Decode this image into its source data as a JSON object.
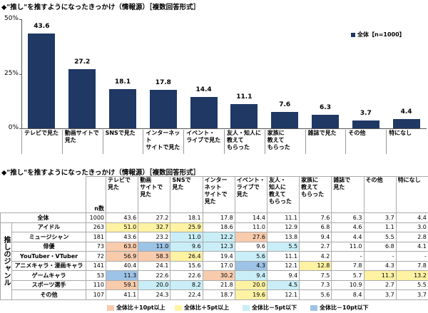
{
  "chart_data": {
    "type": "bar",
    "title": "◆\"推し\"を推すようになったきっかけ（情報源）［複数回答形式］",
    "categories": [
      "テレビで見た",
      "動画サイトで\n見た",
      "SNSで見た",
      "インターネット\nサイトで見た",
      "イベント・\nライブで見た",
      "友人・知人に\n教えて\nもらった",
      "家族に\n教えて\nもらった",
      "雑誌で見た",
      "その他",
      "特になし"
    ],
    "series": [
      {
        "name": "全体【n=1000】",
        "color": "#1f3864",
        "values": [
          43.6,
          27.2,
          18.1,
          17.8,
          14.4,
          11.1,
          7.6,
          6.3,
          3.7,
          4.4
        ]
      }
    ],
    "ylim": [
      0,
      50
    ],
    "yticks": [
      {
        "value": 0,
        "label": "0%"
      },
      {
        "value": 25,
        "label": "25%"
      },
      {
        "value": 50,
        "label": "50%"
      }
    ],
    "legend": "upper right"
  },
  "table": {
    "title": "◆\"推し\"を推すようになったきっかけ（情報源）［複数回答形式］",
    "n_header": "n数",
    "columns": [
      "テレビで\n見た",
      "動画\nサイトで\n見た",
      "SNSで\n見た",
      "インター\nネット\nサイトで\n見た",
      "イベント・\nライブで\n見た",
      "友人・\n知人に\n教えて\nもらった",
      "家族に\n教えて\nもらった",
      "雑誌で\n見た",
      "その他",
      "特になし"
    ],
    "group_label": "推しのジャンル",
    "rows": [
      {
        "label": "全体",
        "n": 1000,
        "values": [
          "43.6",
          "27.2",
          "18.1",
          "17.8",
          "14.4",
          "11.1",
          "7.6",
          "6.3",
          "3.7",
          "4.4"
        ],
        "highlights": [
          null,
          null,
          null,
          null,
          null,
          null,
          null,
          null,
          null,
          null
        ]
      },
      {
        "label": "アイドル",
        "n": 263,
        "values": [
          "51.0",
          "32.7",
          "25.9",
          "18.6",
          "11.0",
          "12.9",
          "6.8",
          "4.6",
          "1.1",
          "3.0"
        ],
        "highlights": [
          1,
          1,
          1,
          null,
          null,
          null,
          null,
          null,
          null,
          null
        ]
      },
      {
        "label": "ミュージシャン",
        "n": 181,
        "values": [
          "43.6",
          "23.2",
          "11.0",
          "12.2",
          "27.6",
          "13.8",
          "9.4",
          "4.4",
          "5.5",
          "2.8"
        ],
        "highlights": [
          null,
          null,
          2,
          2,
          0,
          null,
          null,
          null,
          null,
          null
        ]
      },
      {
        "label": "俳優",
        "n": 73,
        "values": [
          "63.0",
          "11.0",
          "9.6",
          "12.3",
          "9.6",
          "5.5",
          "2.7",
          "11.0",
          "6.8",
          "4.1"
        ],
        "highlights": [
          0,
          3,
          2,
          2,
          null,
          2,
          null,
          null,
          null,
          null
        ]
      },
      {
        "label": "YouTuber・VTuber",
        "n": 72,
        "values": [
          "56.9",
          "58.3",
          "26.4",
          "19.4",
          "5.6",
          "11.1",
          "4.2",
          "-",
          "-",
          "-"
        ],
        "highlights": [
          0,
          0,
          1,
          null,
          2,
          null,
          null,
          null,
          null,
          null
        ]
      },
      {
        "label": "アニメキャラ・漫画キャラ",
        "n": 141,
        "values": [
          "40.4",
          "24.1",
          "15.6",
          "17.0",
          "4.3",
          "12.1",
          "12.8",
          "7.8",
          "4.3",
          "7.8"
        ],
        "highlights": [
          null,
          null,
          null,
          null,
          3,
          null,
          1,
          null,
          null,
          null
        ]
      },
      {
        "label": "ゲームキャラ",
        "n": 53,
        "values": [
          "11.3",
          "22.6",
          "22.6",
          "30.2",
          "9.4",
          "9.4",
          "7.5",
          "5.7",
          "11.3",
          "13.2"
        ],
        "highlights": [
          3,
          null,
          null,
          0,
          2,
          null,
          null,
          null,
          1,
          1
        ]
      },
      {
        "label": "スポーツ選手",
        "n": 110,
        "values": [
          "59.1",
          "20.0",
          "8.2",
          "21.8",
          "20.0",
          "4.5",
          "7.3",
          "10.9",
          "2.7",
          "5.5"
        ],
        "highlights": [
          0,
          2,
          2,
          null,
          1,
          2,
          null,
          null,
          null,
          null
        ]
      },
      {
        "label": "その他",
        "n": 107,
        "values": [
          "41.1",
          "24.3",
          "22.4",
          "18.7",
          "19.6",
          "12.1",
          "5.6",
          "8.4",
          "3.7",
          "3.7"
        ],
        "highlights": [
          null,
          null,
          null,
          null,
          1,
          null,
          null,
          null,
          null,
          null
        ]
      }
    ],
    "legend": [
      {
        "label": "全体比＋10pt以上",
        "color": "#f8cbad"
      },
      {
        "label": "全体比＋5pt以上",
        "color": "#fff2a3"
      },
      {
        "label": "全体比－5pt以下",
        "color": "#c9eef7"
      },
      {
        "label": "全体比－10pt以下",
        "color": "#9dc3e6"
      }
    ]
  }
}
